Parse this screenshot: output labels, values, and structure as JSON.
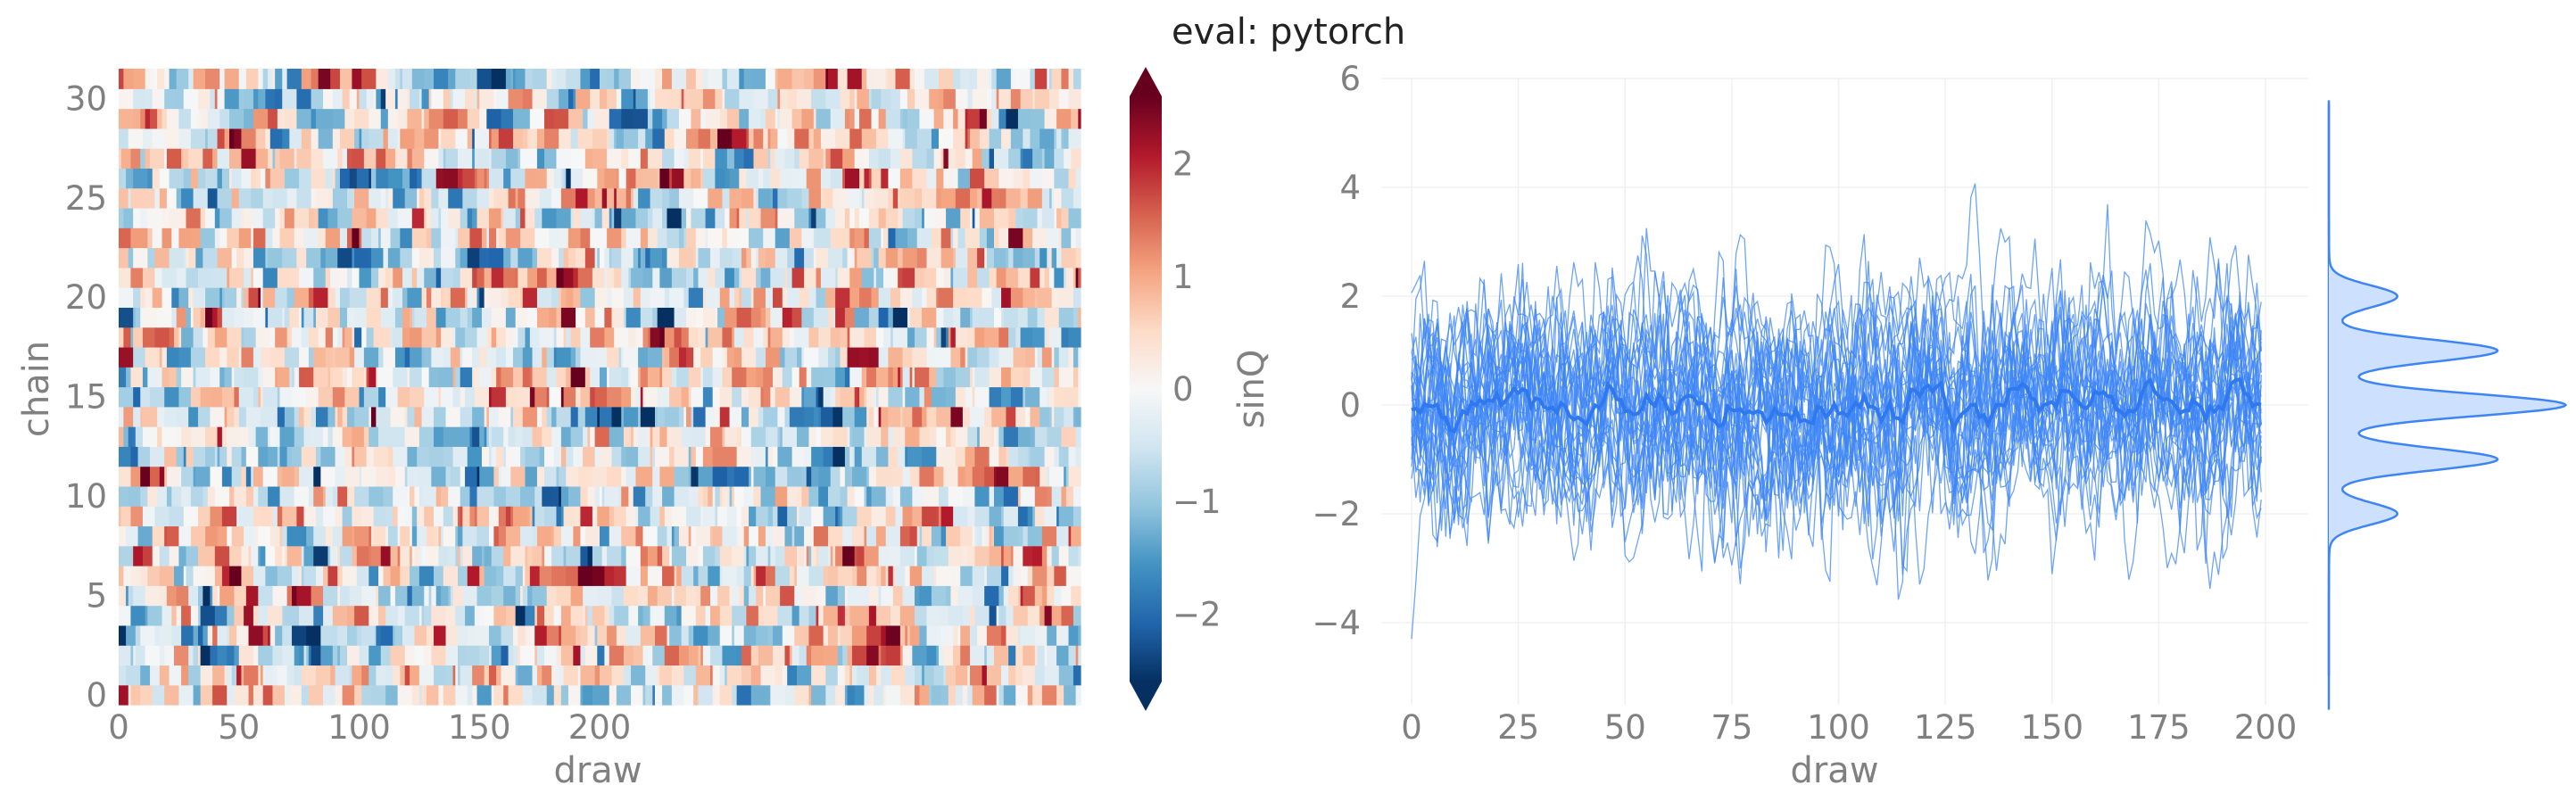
{
  "title": "eval: pytorch",
  "chart_data": [
    {
      "type": "heatmap",
      "xlabel": "draw",
      "ylabel": "chain",
      "x_ticks": [
        0,
        50,
        100,
        150,
        200
      ],
      "y_ticks": [
        0,
        5,
        10,
        15,
        20,
        25,
        30
      ],
      "xlim": [
        0,
        400
      ],
      "ylim": [
        0,
        31
      ],
      "n_rows": 32,
      "n_cols": 400,
      "colorbar": {
        "label": "sinQ",
        "ticks": [
          -2,
          -1,
          0,
          1,
          2
        ],
        "tick_labels": [
          "−2",
          "−1",
          "0",
          "1",
          "2"
        ],
        "range": [
          -2.6,
          2.6
        ],
        "colormap": "RdBu_r",
        "extend": "both"
      }
    },
    {
      "type": "line",
      "xlabel": "draw",
      "ylabel": "",
      "x_ticks": [
        0,
        25,
        50,
        75,
        100,
        125,
        150,
        175,
        200
      ],
      "y_ticks": [
        -4,
        -2,
        0,
        2,
        4,
        6
      ],
      "y_tick_labels": [
        "−4",
        "−2",
        "0",
        "2",
        "4",
        "6"
      ],
      "xlim": [
        -7,
        210
      ],
      "ylim": [
        -5.5,
        6.0
      ],
      "n_chains": 32,
      "n_draws": 200,
      "color": "#3d85f5",
      "mean_line": true,
      "marginal_density": {
        "type": "kde",
        "peaks_at": [
          -2,
          -1,
          0,
          1,
          2
        ],
        "peak_heights": [
          0.3,
          0.72,
          1.0,
          0.72,
          0.3
        ],
        "fill_color": "#cde0fd",
        "line_color": "#3d85f5"
      }
    }
  ]
}
